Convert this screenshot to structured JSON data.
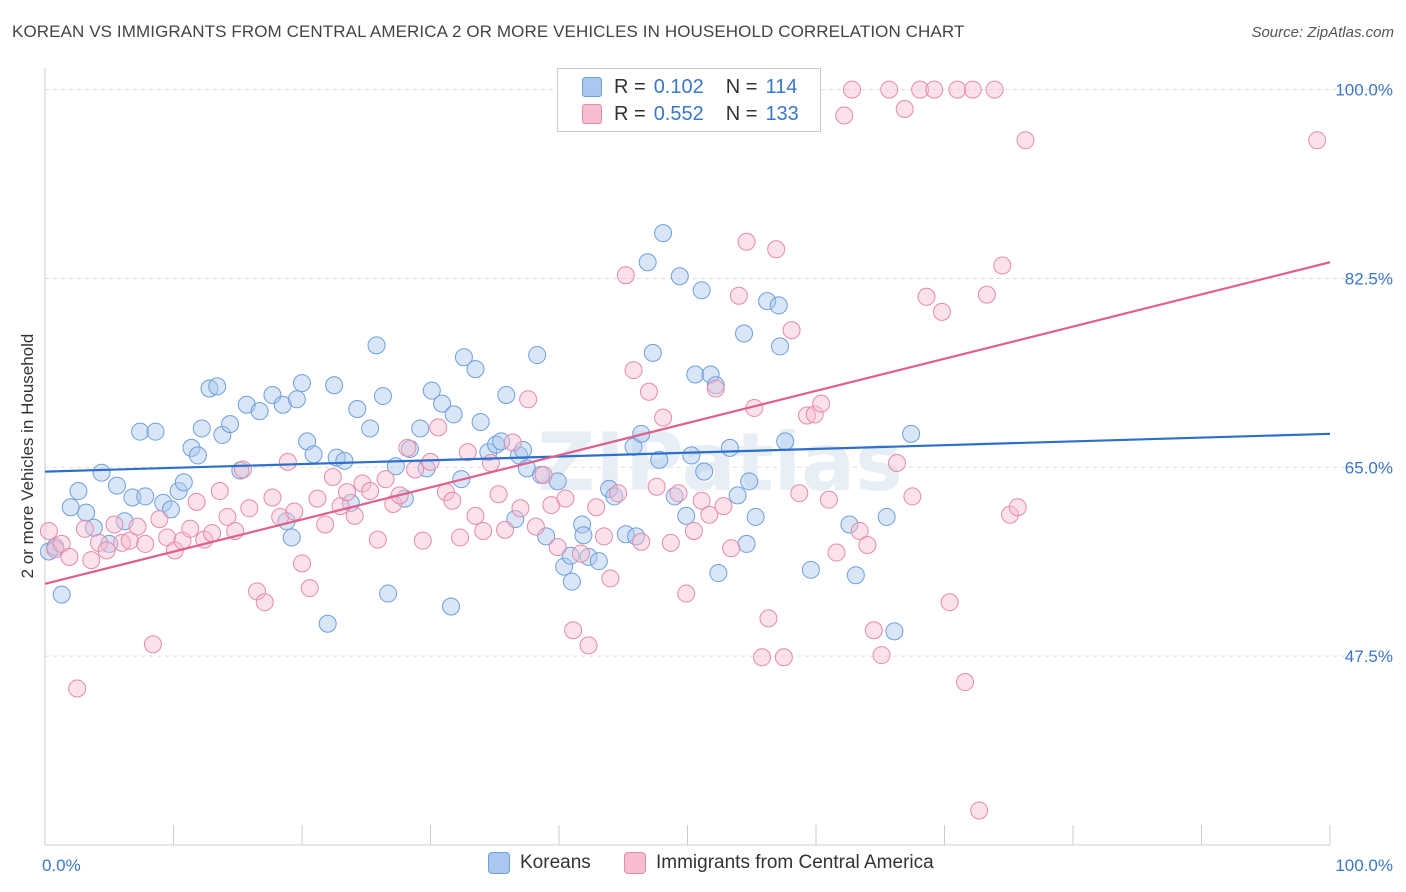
{
  "header": {
    "title": "KOREAN VS IMMIGRANTS FROM CENTRAL AMERICA 2 OR MORE VEHICLES IN HOUSEHOLD CORRELATION CHART",
    "source": "Source: ZipAtlas.com"
  },
  "watermark": "ZIPatlas",
  "legend": {
    "rows": [
      {
        "r_label": "R =",
        "r_value": "0.102",
        "n_label": "N =",
        "n_value": "114",
        "color": "#a9c7ef",
        "stroke": "#6f9fdb"
      },
      {
        "r_label": "R =",
        "r_value": "0.552",
        "n_label": "N =",
        "n_value": "133",
        "color": "#f6bcd0",
        "stroke": "#e58aab"
      }
    ]
  },
  "chart_data": {
    "type": "scatter",
    "title": "KOREAN VS IMMIGRANTS FROM CENTRAL AMERICA 2 OR MORE VEHICLES IN HOUSEHOLD CORRELATION CHART",
    "xlabel": "",
    "ylabel": "2 or more Vehicles in Household",
    "xlim": [
      0,
      100
    ],
    "ylim": [
      30,
      102
    ],
    "x_tick_labels": [
      "0.0%",
      "100.0%"
    ],
    "y_ticks": [
      47.5,
      65.0,
      82.5,
      100.0
    ],
    "y_tick_labels": [
      "47.5%",
      "65.0%",
      "82.5%",
      "100.0%"
    ],
    "grid": true,
    "legend_position": "bottom-center",
    "series": [
      {
        "name": "Koreans",
        "color": "#a9c7ef",
        "stroke": "#6f9fdb",
        "line_color": "#2d6fcb",
        "trend": {
          "x0": 0,
          "y0": 64.6,
          "x1": 100,
          "y1": 68.1
        },
        "points": [
          [
            0.3,
            57.2
          ],
          [
            0.8,
            57.6
          ],
          [
            1.3,
            53.2
          ],
          [
            2.0,
            61.3
          ],
          [
            2.6,
            62.8
          ],
          [
            3.2,
            60.8
          ],
          [
            3.8,
            59.4
          ],
          [
            4.4,
            64.5
          ],
          [
            5.0,
            57.9
          ],
          [
            5.6,
            63.3
          ],
          [
            6.2,
            60.0
          ],
          [
            6.8,
            62.2
          ],
          [
            7.4,
            68.3
          ],
          [
            7.8,
            62.3
          ],
          [
            8.6,
            68.3
          ],
          [
            9.2,
            61.7
          ],
          [
            9.8,
            61.1
          ],
          [
            10.4,
            62.8
          ],
          [
            10.8,
            63.6
          ],
          [
            11.4,
            66.8
          ],
          [
            11.9,
            66.1
          ],
          [
            12.2,
            68.6
          ],
          [
            12.8,
            72.3
          ],
          [
            13.4,
            72.5
          ],
          [
            13.8,
            68.0
          ],
          [
            14.4,
            69.0
          ],
          [
            15.2,
            64.7
          ],
          [
            15.7,
            70.8
          ],
          [
            16.7,
            70.2
          ],
          [
            17.7,
            71.7
          ],
          [
            18.5,
            70.8
          ],
          [
            18.8,
            60.0
          ],
          [
            19.2,
            58.5
          ],
          [
            19.6,
            71.3
          ],
          [
            20.0,
            72.8
          ],
          [
            20.4,
            67.4
          ],
          [
            20.9,
            66.2
          ],
          [
            22.0,
            50.5
          ],
          [
            22.5,
            72.6
          ],
          [
            22.7,
            65.9
          ],
          [
            23.3,
            65.6
          ],
          [
            23.8,
            61.7
          ],
          [
            24.3,
            70.4
          ],
          [
            25.3,
            68.6
          ],
          [
            25.8,
            76.3
          ],
          [
            26.3,
            71.6
          ],
          [
            26.7,
            53.3
          ],
          [
            27.3,
            65.1
          ],
          [
            28.0,
            62.1
          ],
          [
            28.4,
            66.7
          ],
          [
            29.2,
            68.6
          ],
          [
            29.7,
            64.9
          ],
          [
            30.1,
            72.1
          ],
          [
            30.9,
            70.9
          ],
          [
            31.6,
            52.1
          ],
          [
            31.8,
            69.9
          ],
          [
            32.4,
            63.9
          ],
          [
            32.6,
            75.2
          ],
          [
            33.5,
            74.1
          ],
          [
            33.9,
            69.2
          ],
          [
            34.5,
            66.4
          ],
          [
            35.1,
            67.1
          ],
          [
            35.5,
            67.4
          ],
          [
            35.9,
            71.7
          ],
          [
            36.6,
            60.2
          ],
          [
            36.9,
            66.1
          ],
          [
            37.2,
            66.6
          ],
          [
            37.5,
            64.9
          ],
          [
            38.3,
            75.4
          ],
          [
            38.6,
            64.3
          ],
          [
            39.0,
            58.6
          ],
          [
            39.9,
            63.7
          ],
          [
            40.4,
            55.8
          ],
          [
            40.9,
            56.8
          ],
          [
            41.0,
            54.4
          ],
          [
            41.8,
            59.7
          ],
          [
            41.9,
            58.7
          ],
          [
            42.3,
            56.7
          ],
          [
            43.1,
            56.3
          ],
          [
            43.9,
            63.0
          ],
          [
            44.3,
            62.3
          ],
          [
            45.2,
            58.8
          ],
          [
            45.8,
            66.9
          ],
          [
            46.0,
            58.6
          ],
          [
            46.4,
            68.1
          ],
          [
            46.9,
            84.0
          ],
          [
            47.3,
            75.6
          ],
          [
            47.8,
            65.7
          ],
          [
            48.1,
            86.7
          ],
          [
            49.0,
            62.3
          ],
          [
            49.4,
            82.7
          ],
          [
            49.9,
            60.5
          ],
          [
            50.3,
            66.1
          ],
          [
            50.6,
            73.6
          ],
          [
            51.1,
            81.4
          ],
          [
            51.3,
            64.6
          ],
          [
            51.8,
            73.6
          ],
          [
            52.2,
            72.6
          ],
          [
            52.4,
            55.2
          ],
          [
            53.3,
            66.8
          ],
          [
            53.9,
            62.4
          ],
          [
            54.4,
            77.4
          ],
          [
            54.6,
            57.9
          ],
          [
            54.8,
            63.7
          ],
          [
            55.3,
            60.4
          ],
          [
            56.2,
            80.4
          ],
          [
            57.1,
            80.0
          ],
          [
            57.2,
            76.2
          ],
          [
            57.6,
            67.4
          ],
          [
            59.6,
            55.5
          ],
          [
            62.6,
            59.7
          ],
          [
            63.1,
            55.0
          ],
          [
            65.5,
            60.4
          ],
          [
            66.1,
            49.8
          ],
          [
            67.4,
            68.1
          ]
        ]
      },
      {
        "name": "Immigrants from Central America",
        "color": "#f6bcd0",
        "stroke": "#e58aab",
        "line_color": "#e0608d",
        "trend": {
          "x0": 0,
          "y0": 54.2,
          "x1": 100,
          "y1": 84.0
        },
        "points": [
          [
            0.3,
            59.1
          ],
          [
            0.8,
            57.4
          ],
          [
            1.3,
            57.9
          ],
          [
            1.9,
            56.7
          ],
          [
            2.5,
            44.5
          ],
          [
            3.1,
            59.3
          ],
          [
            3.6,
            56.4
          ],
          [
            4.2,
            58.0
          ],
          [
            4.8,
            57.3
          ],
          [
            5.4,
            59.7
          ],
          [
            6.0,
            58.0
          ],
          [
            6.6,
            58.2
          ],
          [
            7.2,
            59.5
          ],
          [
            7.8,
            57.9
          ],
          [
            8.4,
            48.6
          ],
          [
            8.9,
            60.2
          ],
          [
            9.5,
            58.5
          ],
          [
            10.1,
            57.3
          ],
          [
            10.7,
            58.2
          ],
          [
            11.3,
            59.3
          ],
          [
            11.8,
            61.8
          ],
          [
            12.4,
            58.3
          ],
          [
            13.0,
            58.9
          ],
          [
            13.6,
            62.8
          ],
          [
            14.2,
            60.4
          ],
          [
            14.8,
            59.1
          ],
          [
            15.4,
            64.8
          ],
          [
            15.9,
            61.2
          ],
          [
            16.5,
            53.5
          ],
          [
            17.1,
            52.5
          ],
          [
            17.7,
            62.2
          ],
          [
            18.3,
            60.4
          ],
          [
            18.9,
            65.5
          ],
          [
            19.4,
            60.9
          ],
          [
            20.0,
            56.1
          ],
          [
            20.6,
            53.8
          ],
          [
            21.2,
            62.1
          ],
          [
            21.8,
            59.7
          ],
          [
            22.4,
            64.1
          ],
          [
            23.0,
            61.4
          ],
          [
            23.5,
            62.7
          ],
          [
            24.1,
            60.5
          ],
          [
            24.7,
            63.5
          ],
          [
            25.3,
            62.8
          ],
          [
            25.9,
            58.3
          ],
          [
            26.5,
            63.9
          ],
          [
            27.1,
            61.6
          ],
          [
            27.6,
            62.4
          ],
          [
            28.2,
            66.8
          ],
          [
            28.8,
            64.8
          ],
          [
            29.4,
            58.2
          ],
          [
            30.0,
            65.5
          ],
          [
            30.6,
            68.7
          ],
          [
            31.2,
            62.7
          ],
          [
            31.7,
            61.9
          ],
          [
            32.3,
            58.5
          ],
          [
            32.9,
            66.4
          ],
          [
            33.5,
            60.5
          ],
          [
            34.1,
            59.1
          ],
          [
            34.7,
            65.4
          ],
          [
            35.3,
            62.5
          ],
          [
            35.8,
            59.2
          ],
          [
            36.4,
            67.3
          ],
          [
            37.0,
            61.2
          ],
          [
            37.6,
            71.3
          ],
          [
            38.2,
            59.5
          ],
          [
            38.8,
            64.3
          ],
          [
            39.4,
            61.5
          ],
          [
            39.9,
            57.6
          ],
          [
            40.5,
            62.1
          ],
          [
            41.1,
            49.9
          ],
          [
            41.7,
            57.0
          ],
          [
            42.3,
            48.5
          ],
          [
            42.9,
            61.3
          ],
          [
            43.5,
            58.6
          ],
          [
            44.0,
            54.7
          ],
          [
            44.6,
            62.6
          ],
          [
            45.2,
            82.8
          ],
          [
            45.8,
            74.0
          ],
          [
            46.4,
            58.1
          ],
          [
            47.0,
            72.0
          ],
          [
            47.6,
            63.2
          ],
          [
            48.1,
            69.6
          ],
          [
            48.7,
            58.0
          ],
          [
            49.3,
            62.6
          ],
          [
            49.9,
            53.3
          ],
          [
            50.5,
            59.1
          ],
          [
            51.1,
            61.9
          ],
          [
            51.7,
            60.6
          ],
          [
            52.2,
            72.3
          ],
          [
            52.8,
            61.4
          ],
          [
            53.4,
            57.5
          ],
          [
            54.0,
            80.9
          ],
          [
            54.6,
            85.9
          ],
          [
            55.2,
            70.5
          ],
          [
            55.8,
            47.4
          ],
          [
            56.3,
            51.0
          ],
          [
            56.9,
            85.2
          ],
          [
            57.5,
            47.4
          ],
          [
            58.1,
            77.7
          ],
          [
            58.7,
            62.6
          ],
          [
            59.3,
            69.8
          ],
          [
            59.9,
            69.9
          ],
          [
            60.4,
            70.9
          ],
          [
            61.0,
            62.0
          ],
          [
            61.6,
            57.1
          ],
          [
            62.2,
            97.6
          ],
          [
            62.8,
            100.0
          ],
          [
            63.4,
            59.1
          ],
          [
            64.0,
            57.8
          ],
          [
            64.5,
            49.9
          ],
          [
            65.1,
            47.6
          ],
          [
            65.7,
            100.0
          ],
          [
            66.3,
            65.4
          ],
          [
            66.9,
            98.2
          ],
          [
            67.5,
            62.3
          ],
          [
            68.1,
            100.0
          ],
          [
            68.6,
            80.8
          ],
          [
            69.2,
            100.0
          ],
          [
            69.8,
            79.4
          ],
          [
            70.4,
            52.5
          ],
          [
            71.0,
            100.0
          ],
          [
            71.6,
            45.1
          ],
          [
            72.2,
            100.0
          ],
          [
            72.7,
            33.2
          ],
          [
            73.3,
            81.0
          ],
          [
            73.9,
            100.0
          ],
          [
            74.5,
            83.7
          ],
          [
            75.1,
            60.6
          ],
          [
            75.7,
            61.3
          ],
          [
            76.3,
            95.3
          ],
          [
            99.0,
            95.3
          ]
        ]
      }
    ]
  },
  "bottom_legend": [
    {
      "label": "Koreans",
      "color": "#a9c7ef",
      "stroke": "#6f9fdb"
    },
    {
      "label": "Immigrants from Central America",
      "color": "#f6bcd0",
      "stroke": "#e58aab"
    }
  ]
}
